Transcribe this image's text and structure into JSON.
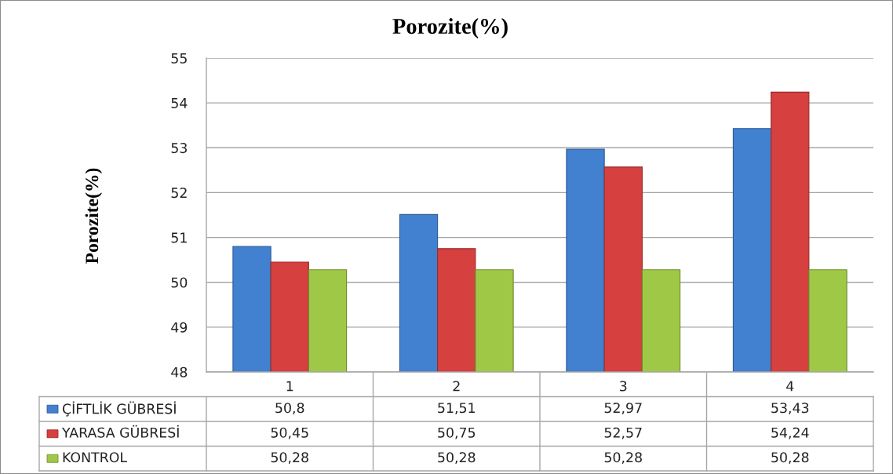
{
  "chart_data": {
    "type": "bar",
    "title": "Porozite(%)",
    "ylabel": "Porozite(%)",
    "categories": [
      "1",
      "2",
      "3",
      "4"
    ],
    "series": [
      {
        "name": "ÇİFTLİK GÜBRESİ",
        "color": "#4280d0",
        "values": [
          50.8,
          51.51,
          52.97,
          53.43
        ],
        "value_labels": [
          "50,8",
          "51,51",
          "52,97",
          "53,43"
        ]
      },
      {
        "name": "YARASA GÜBRESİ",
        "color": "#d6403e",
        "values": [
          50.45,
          50.75,
          52.57,
          54.24
        ],
        "value_labels": [
          "50,45",
          "50,75",
          "52,57",
          "54,24"
        ]
      },
      {
        "name": "KONTROL",
        "color": "#9fc846",
        "values": [
          50.28,
          50.28,
          50.28,
          50.28
        ],
        "value_labels": [
          "50,28",
          "50,28",
          "50,28",
          "50,28"
        ]
      }
    ],
    "ylim": [
      48,
      55
    ],
    "yticks": [
      48,
      49,
      50,
      51,
      52,
      53,
      54,
      55
    ],
    "grid": "y",
    "legend": "bottom left"
  }
}
